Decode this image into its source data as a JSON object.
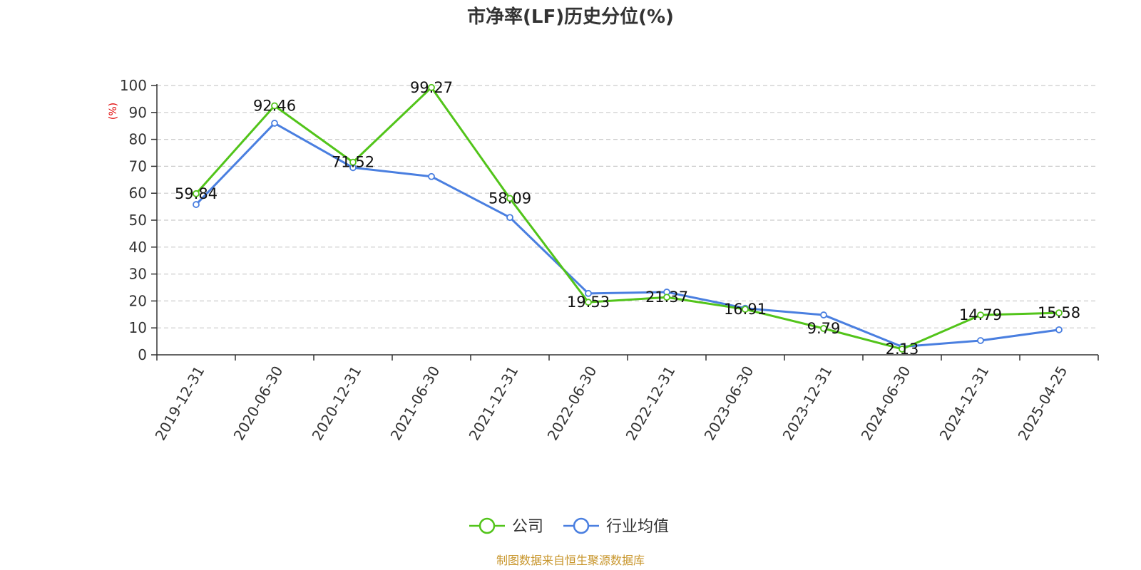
{
  "colors": {
    "company": "#52c41a",
    "industry": "#4a7fe0",
    "grid": "#cccccc",
    "axis": "#333333",
    "ylabel": "#e00000",
    "source": "#c8962c"
  },
  "source": "制图数据来自恒生聚源数据库",
  "chart_data": {
    "type": "line",
    "title": "市净率(LF)历史分位(%)",
    "xlabel": "",
    "ylabel": "(%)",
    "ylim": [
      0,
      100
    ],
    "yticks": [
      0,
      10,
      20,
      30,
      40,
      50,
      60,
      70,
      80,
      90,
      100
    ],
    "grid": true,
    "legend_position": "bottom-center",
    "categories": [
      "2019-12-31",
      "2020-06-30",
      "2020-12-31",
      "2021-06-30",
      "2021-12-31",
      "2022-06-30",
      "2022-12-31",
      "2023-06-30",
      "2023-12-31",
      "2024-06-30",
      "2024-12-31",
      "2025-04-25"
    ],
    "series": [
      {
        "name": "公司",
        "color": "#52c41a",
        "values": [
          59.84,
          92.46,
          71.52,
          99.27,
          58.09,
          19.53,
          21.37,
          16.91,
          9.79,
          2.13,
          14.79,
          15.58
        ],
        "labels": [
          "59.84",
          "92.46",
          "71.52",
          "99.27",
          "58.09",
          "19.53",
          "21.37",
          "16.91",
          "9.79",
          "2.13",
          "14.79",
          "15.58"
        ]
      },
      {
        "name": "行业均值",
        "color": "#4a7fe0",
        "values": [
          55.8,
          86.0,
          69.5,
          66.2,
          51.0,
          22.8,
          23.3,
          17.3,
          14.8,
          3.0,
          5.3,
          9.3
        ]
      }
    ]
  }
}
